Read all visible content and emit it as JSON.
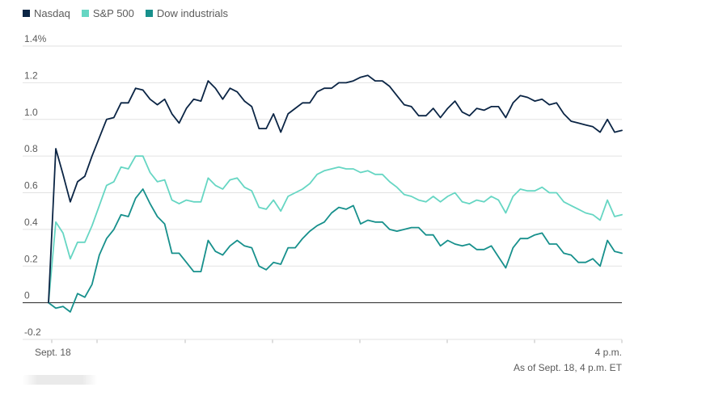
{
  "colors": {
    "nasdaq": "#0b2545",
    "sp500": "#66d6c3",
    "dow": "#17908c",
    "grid": "#e2e2e2",
    "zero": "#222222",
    "text": "#5b5b5b"
  },
  "footnote": "As of Sept. 18, 4 p.m. ET",
  "chart_data": {
    "type": "line",
    "title": "",
    "xlabel": "",
    "ylabel": "",
    "ylim": [
      -0.2,
      1.4
    ],
    "yticks": [
      -0.2,
      0,
      0.2,
      0.4,
      0.6,
      0.8,
      1.0,
      1.2,
      1.4
    ],
    "ytick_labels": [
      "-0.2",
      "0",
      "0.2",
      "0.4",
      "0.6",
      "0.8",
      "1.0",
      "1.2",
      "1.4%"
    ],
    "xtick_labels": [
      "Sept. 18",
      "4 p.m."
    ],
    "grid": true,
    "legend": "top-left",
    "series": [
      {
        "name": "Nasdaq",
        "key": "nasdaq",
        "values": [
          0.0,
          0.84,
          0.7,
          0.55,
          0.66,
          0.69,
          0.8,
          0.9,
          1.0,
          1.01,
          1.09,
          1.09,
          1.17,
          1.16,
          1.11,
          1.08,
          1.11,
          1.03,
          0.98,
          1.06,
          1.11,
          1.1,
          1.21,
          1.17,
          1.11,
          1.17,
          1.15,
          1.1,
          1.07,
          0.95,
          0.95,
          1.03,
          0.93,
          1.03,
          1.06,
          1.09,
          1.09,
          1.15,
          1.17,
          1.17,
          1.2,
          1.2,
          1.21,
          1.23,
          1.24,
          1.21,
          1.21,
          1.18,
          1.13,
          1.08,
          1.07,
          1.02,
          1.02,
          1.06,
          1.01,
          1.06,
          1.1,
          1.04,
          1.02,
          1.06,
          1.05,
          1.07,
          1.07,
          1.01,
          1.09,
          1.13,
          1.12,
          1.1,
          1.11,
          1.08,
          1.09,
          1.03,
          0.99,
          0.98,
          0.97,
          0.96,
          0.93,
          1.0,
          0.93,
          0.94
        ]
      },
      {
        "name": "S&P 500",
        "key": "sp500",
        "values": [
          0.0,
          0.44,
          0.38,
          0.24,
          0.33,
          0.33,
          0.42,
          0.53,
          0.64,
          0.66,
          0.74,
          0.73,
          0.8,
          0.8,
          0.71,
          0.66,
          0.67,
          0.56,
          0.54,
          0.56,
          0.55,
          0.55,
          0.68,
          0.64,
          0.62,
          0.67,
          0.68,
          0.63,
          0.61,
          0.52,
          0.51,
          0.56,
          0.5,
          0.58,
          0.6,
          0.62,
          0.65,
          0.7,
          0.72,
          0.73,
          0.74,
          0.73,
          0.73,
          0.71,
          0.72,
          0.7,
          0.7,
          0.66,
          0.63,
          0.59,
          0.58,
          0.56,
          0.55,
          0.58,
          0.55,
          0.58,
          0.6,
          0.55,
          0.54,
          0.56,
          0.55,
          0.58,
          0.56,
          0.49,
          0.58,
          0.62,
          0.61,
          0.61,
          0.63,
          0.6,
          0.6,
          0.55,
          0.53,
          0.51,
          0.49,
          0.48,
          0.45,
          0.56,
          0.47,
          0.48
        ]
      },
      {
        "name": "Dow industrials",
        "key": "dow",
        "values": [
          0.0,
          -0.03,
          -0.02,
          -0.05,
          0.05,
          0.03,
          0.1,
          0.26,
          0.35,
          0.4,
          0.48,
          0.47,
          0.57,
          0.62,
          0.54,
          0.47,
          0.43,
          0.27,
          0.27,
          0.22,
          0.17,
          0.17,
          0.34,
          0.28,
          0.26,
          0.31,
          0.34,
          0.31,
          0.3,
          0.2,
          0.18,
          0.22,
          0.21,
          0.3,
          0.3,
          0.35,
          0.39,
          0.42,
          0.44,
          0.49,
          0.52,
          0.51,
          0.53,
          0.43,
          0.45,
          0.44,
          0.44,
          0.4,
          0.39,
          0.4,
          0.41,
          0.41,
          0.37,
          0.37,
          0.31,
          0.34,
          0.32,
          0.31,
          0.32,
          0.29,
          0.29,
          0.31,
          0.25,
          0.19,
          0.3,
          0.35,
          0.35,
          0.37,
          0.38,
          0.32,
          0.32,
          0.27,
          0.26,
          0.22,
          0.22,
          0.24,
          0.2,
          0.34,
          0.28,
          0.27
        ]
      }
    ]
  }
}
